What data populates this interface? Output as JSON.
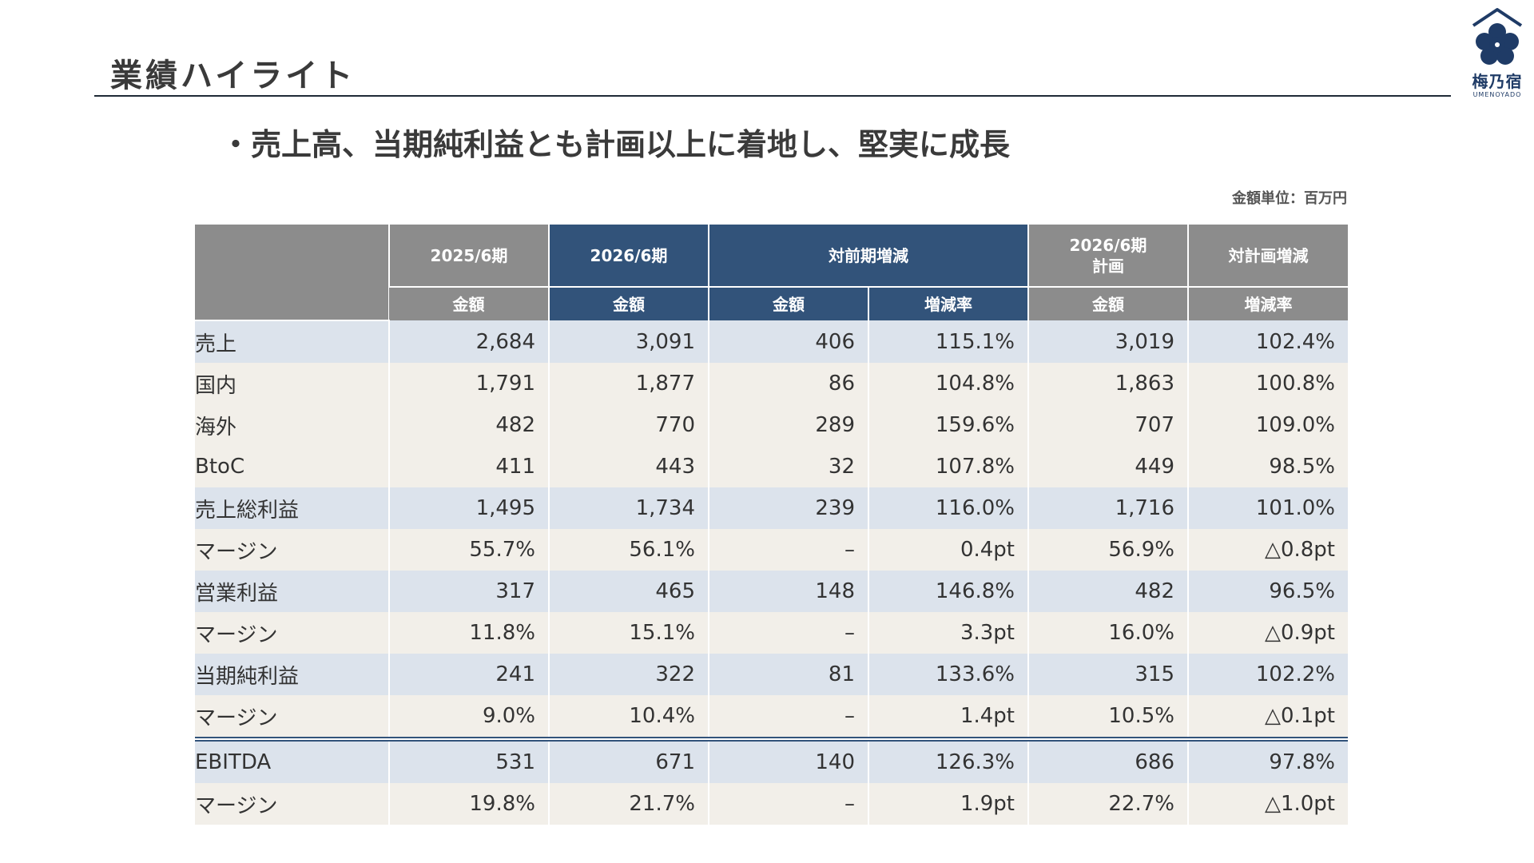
{
  "page": {
    "title": "業績ハイライト",
    "headline": "・売上高、当期純利益とも計画以上に着地し、堅実に成長",
    "unit_note": "金額単位：百万円"
  },
  "logo": {
    "name": "梅乃宿",
    "roman": "UMENOYADO",
    "icon": "plum-blossom-house-icon",
    "color": "#1f3b66"
  },
  "colors": {
    "header_gray": "#8c8c8c",
    "header_navy": "#32537a",
    "row_blue": "#dce3ec",
    "row_beige": "#f2efe9"
  },
  "table": {
    "headers": {
      "fy2025": "2025/6期",
      "fy2026": "2026/6期",
      "yoy": "対前期増減",
      "plan_line1": "2026/6期",
      "plan_line2": "計画",
      "vs_plan": "対計画増減"
    },
    "subheaders": [
      "金額",
      "金額",
      "金額",
      "増減率",
      "金額",
      "増減率"
    ],
    "rows": [
      {
        "label": "売上",
        "values": [
          "2,684",
          "3,091",
          "406",
          "115.1%",
          "3,019",
          "102.4%"
        ]
      },
      {
        "label": "国内",
        "values": [
          "1,791",
          "1,877",
          "86",
          "104.8%",
          "1,863",
          "100.8%"
        ]
      },
      {
        "label": "海外",
        "values": [
          "482",
          "770",
          "289",
          "159.6%",
          "707",
          "109.0%"
        ]
      },
      {
        "label": "BtoC",
        "values": [
          "411",
          "443",
          "32",
          "107.8%",
          "449",
          "98.5%"
        ]
      },
      {
        "label": "売上総利益",
        "values": [
          "1,495",
          "1,734",
          "239",
          "116.0%",
          "1,716",
          "101.0%"
        ]
      },
      {
        "label": "マージン",
        "values": [
          "55.7%",
          "56.1%",
          "–",
          "0.4pt",
          "56.9%",
          "△0.8pt"
        ]
      },
      {
        "label": "営業利益",
        "values": [
          "317",
          "465",
          "148",
          "146.8%",
          "482",
          "96.5%"
        ]
      },
      {
        "label": "マージン",
        "values": [
          "11.8%",
          "15.1%",
          "–",
          "3.3pt",
          "16.0%",
          "△0.9pt"
        ]
      },
      {
        "label": "当期純利益",
        "values": [
          "241",
          "322",
          "81",
          "133.6%",
          "315",
          "102.2%"
        ]
      },
      {
        "label": "マージン",
        "values": [
          "9.0%",
          "10.4%",
          "–",
          "1.4pt",
          "10.5%",
          "△0.1pt"
        ]
      },
      {
        "label": "EBITDA",
        "values": [
          "531",
          "671",
          "140",
          "126.3%",
          "686",
          "97.8%"
        ]
      },
      {
        "label": "マージン",
        "values": [
          "19.8%",
          "21.7%",
          "–",
          "1.9pt",
          "22.7%",
          "△1.0pt"
        ]
      }
    ]
  }
}
